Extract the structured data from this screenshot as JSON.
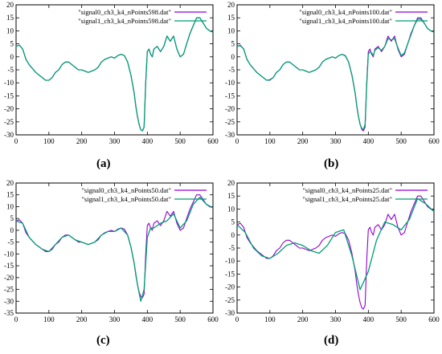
{
  "figure": {
    "panel_labels": [
      "(a)",
      "(b)",
      "(c)",
      "(d)"
    ]
  },
  "colors": {
    "signal0": "#9400d3",
    "signal1": "#009e73",
    "axis": "#000000"
  },
  "chart_data": [
    {
      "type": "line",
      "panel": "(a)",
      "xlim": [
        0,
        600
      ],
      "ylim": [
        -30,
        20
      ],
      "xticks": [
        0,
        100,
        200,
        300,
        400,
        500,
        600
      ],
      "yticks": [
        -30,
        -25,
        -20,
        -15,
        -10,
        -5,
        0,
        5,
        10,
        15,
        20
      ],
      "legend_position": "top-right",
      "grid": false,
      "series": [
        {
          "name": "\"signal0_ch3_k4_nPoints598.dat\"",
          "x": [
            0,
            10,
            20,
            30,
            40,
            50,
            60,
            70,
            80,
            90,
            100,
            110,
            120,
            130,
            140,
            150,
            160,
            170,
            180,
            190,
            200,
            210,
            220,
            230,
            240,
            250,
            260,
            270,
            280,
            290,
            300,
            310,
            320,
            330,
            340,
            350,
            360,
            365,
            370,
            375,
            380,
            385,
            390,
            395,
            400,
            405,
            410,
            415,
            420,
            430,
            440,
            450,
            460,
            470,
            480,
            490,
            500,
            510,
            520,
            530,
            540,
            550,
            560,
            570,
            580,
            590,
            600
          ],
          "y": [
            4,
            4.5,
            3,
            -1,
            -3,
            -4.5,
            -6,
            -7,
            -8,
            -9,
            -9,
            -8,
            -6,
            -5,
            -3,
            -2,
            -2,
            -3,
            -4,
            -5,
            -5,
            -5.5,
            -6,
            -5.5,
            -5,
            -4,
            -2,
            -1,
            -0.5,
            0,
            -0.5,
            0.5,
            1,
            0.5,
            -2,
            -7,
            -14,
            -19,
            -23,
            -26,
            -28,
            -28.5,
            -27,
            -10,
            2,
            3,
            1,
            0,
            3,
            4,
            2,
            4,
            8,
            6,
            8,
            3,
            0,
            1,
            5,
            9,
            12,
            15,
            15,
            13,
            11,
            10,
            9.5
          ]
        },
        {
          "name": "\"signal1_ch3_k4_nPoints598.dat\"",
          "x": [
            0,
            10,
            20,
            30,
            40,
            50,
            60,
            70,
            80,
            90,
            100,
            110,
            120,
            130,
            140,
            150,
            160,
            170,
            180,
            190,
            200,
            210,
            220,
            230,
            240,
            250,
            260,
            270,
            280,
            290,
            300,
            310,
            320,
            330,
            340,
            350,
            360,
            365,
            370,
            375,
            380,
            385,
            390,
            395,
            400,
            405,
            410,
            415,
            420,
            430,
            440,
            450,
            460,
            470,
            480,
            490,
            500,
            510,
            520,
            530,
            540,
            550,
            560,
            570,
            580,
            590,
            600
          ],
          "y": [
            4,
            4.5,
            3,
            -1,
            -3,
            -4.5,
            -6,
            -7,
            -8,
            -9,
            -9,
            -8,
            -6,
            -5,
            -3,
            -2,
            -2,
            -3,
            -4,
            -5,
            -5,
            -5.5,
            -6,
            -5.5,
            -5,
            -4,
            -2,
            -1,
            -0.5,
            0,
            -0.5,
            0.5,
            1,
            0.5,
            -2,
            -7,
            -14,
            -19,
            -23,
            -26,
            -28,
            -28.5,
            -27,
            -10,
            2,
            3,
            1,
            0,
            3,
            4,
            2,
            4,
            8,
            6,
            8,
            3,
            0,
            1,
            5,
            9,
            12,
            15,
            15,
            13,
            11,
            10,
            9.5
          ]
        }
      ]
    },
    {
      "type": "line",
      "panel": "(b)",
      "xlim": [
        0,
        600
      ],
      "ylim": [
        -30,
        20
      ],
      "xticks": [
        0,
        100,
        200,
        300,
        400,
        500,
        600
      ],
      "yticks": [
        -30,
        -25,
        -20,
        -15,
        -10,
        -5,
        0,
        5,
        10,
        15,
        20
      ],
      "legend_position": "top-right",
      "grid": false,
      "series": [
        {
          "name": "\"signal0_ch3_k4_nPoints100.dat\"",
          "x": [
            0,
            10,
            20,
            30,
            40,
            50,
            60,
            70,
            80,
            90,
            100,
            110,
            120,
            130,
            140,
            150,
            160,
            170,
            180,
            190,
            200,
            210,
            220,
            230,
            240,
            250,
            260,
            270,
            280,
            290,
            300,
            310,
            320,
            330,
            340,
            350,
            360,
            365,
            370,
            375,
            380,
            385,
            390,
            395,
            400,
            405,
            410,
            415,
            420,
            430,
            440,
            450,
            460,
            470,
            480,
            490,
            500,
            510,
            520,
            530,
            540,
            550,
            560,
            570,
            580,
            590,
            600
          ],
          "y": [
            4,
            4.5,
            3,
            -1,
            -3,
            -4.5,
            -6,
            -7,
            -8,
            -9,
            -9,
            -8,
            -6,
            -5,
            -3,
            -2,
            -2,
            -3,
            -4,
            -5,
            -5,
            -5.5,
            -6,
            -5.5,
            -5,
            -4,
            -2,
            -1,
            -0.5,
            0,
            -0.5,
            0.5,
            1,
            0.5,
            -2,
            -7,
            -14,
            -19,
            -23,
            -26,
            -28,
            -28.5,
            -27,
            -10,
            2,
            3,
            1,
            0,
            3,
            4,
            2,
            4,
            8,
            6,
            8,
            3,
            0,
            1,
            5,
            9,
            12,
            15,
            15,
            13,
            11,
            10,
            9.5
          ]
        },
        {
          "name": "\"signal1_ch3_k4_nPoints100.dat\"",
          "x": [
            0,
            10,
            20,
            30,
            40,
            50,
            60,
            70,
            80,
            90,
            100,
            110,
            120,
            130,
            140,
            150,
            160,
            170,
            180,
            190,
            200,
            210,
            220,
            230,
            240,
            250,
            260,
            270,
            280,
            290,
            300,
            310,
            320,
            330,
            340,
            350,
            360,
            365,
            370,
            375,
            380,
            385,
            390,
            395,
            400,
            405,
            410,
            415,
            420,
            430,
            440,
            450,
            460,
            470,
            480,
            490,
            500,
            510,
            520,
            530,
            540,
            550,
            560,
            570,
            580,
            590,
            600
          ],
          "y": [
            4,
            4.3,
            3,
            -1,
            -3,
            -4.5,
            -6,
            -7,
            -8,
            -9,
            -8.8,
            -8,
            -6,
            -5,
            -3,
            -2,
            -2,
            -3,
            -4,
            -5,
            -5,
            -5.5,
            -6,
            -5.5,
            -5,
            -4,
            -2,
            -1,
            -0.5,
            0,
            -0.5,
            0.5,
            1,
            0.3,
            -2,
            -7,
            -14,
            -19,
            -23,
            -26,
            -27.5,
            -28,
            -26,
            -11,
            1,
            2,
            1.5,
            0.5,
            2.5,
            3.5,
            2.5,
            4,
            7,
            6.5,
            7,
            3.5,
            0.5,
            1.5,
            5,
            8.5,
            12,
            14.5,
            14.5,
            13,
            11,
            10,
            9.5
          ]
        }
      ]
    },
    {
      "type": "line",
      "panel": "(c)",
      "xlim": [
        0,
        600
      ],
      "ylim": [
        -35,
        20
      ],
      "xticks": [
        0,
        100,
        200,
        300,
        400,
        500,
        600
      ],
      "yticks": [
        -35,
        -30,
        -25,
        -20,
        -15,
        -10,
        -5,
        0,
        5,
        10,
        15,
        20
      ],
      "legend_position": "top-right",
      "grid": false,
      "series": [
        {
          "name": "\"signal0_ch3_k4_nPoints50.dat\"",
          "x": [
            0,
            10,
            20,
            30,
            40,
            50,
            60,
            70,
            80,
            90,
            100,
            110,
            120,
            130,
            140,
            150,
            160,
            170,
            180,
            190,
            200,
            210,
            220,
            230,
            240,
            250,
            260,
            270,
            280,
            290,
            300,
            310,
            320,
            330,
            340,
            350,
            360,
            365,
            370,
            375,
            380,
            385,
            390,
            395,
            400,
            405,
            410,
            415,
            420,
            430,
            440,
            450,
            460,
            470,
            480,
            490,
            500,
            510,
            520,
            530,
            540,
            550,
            560,
            570,
            580,
            590,
            600
          ],
          "y": [
            4,
            4.5,
            3,
            -1,
            -3,
            -4.5,
            -6,
            -7,
            -8,
            -9,
            -9,
            -8,
            -6,
            -5,
            -3,
            -2,
            -2,
            -3,
            -4,
            -5,
            -5,
            -5.5,
            -6,
            -5.5,
            -5,
            -4,
            -2,
            -1,
            -0.5,
            0,
            -0.5,
            0.5,
            1,
            0.5,
            -2,
            -7,
            -14,
            -19,
            -23,
            -26,
            -28,
            -28.5,
            -27,
            -10,
            2,
            3,
            1,
            0,
            3,
            4,
            2,
            4,
            8,
            6,
            8,
            3,
            0,
            1,
            5,
            9,
            12,
            15,
            15,
            13,
            11,
            10,
            9.5
          ]
        },
        {
          "name": "\"signal1_ch3_k4_nPoints50.dat\"",
          "x": [
            0,
            20,
            40,
            60,
            80,
            100,
            120,
            140,
            160,
            180,
            200,
            220,
            240,
            260,
            280,
            300,
            320,
            340,
            350,
            360,
            370,
            380,
            390,
            400,
            410,
            420,
            440,
            460,
            480,
            500,
            520,
            540,
            560,
            580,
            600
          ],
          "y": [
            4,
            3,
            -3,
            -6,
            -8,
            -9,
            -6,
            -3,
            -2,
            -4,
            -5,
            -6,
            -5,
            -2,
            -0.5,
            -0.5,
            1,
            -2,
            -7,
            -14,
            -23,
            -30,
            -25,
            -3,
            1,
            1,
            3,
            4,
            7,
            1,
            4,
            11,
            14,
            11,
            9.5
          ]
        }
      ]
    },
    {
      "type": "line",
      "panel": "(d)",
      "xlim": [
        0,
        600
      ],
      "ylim": [
        -30,
        20
      ],
      "xticks": [
        0,
        100,
        200,
        300,
        400,
        500,
        600
      ],
      "yticks": [
        -30,
        -25,
        -20,
        -15,
        -10,
        -5,
        0,
        5,
        10,
        15,
        20
      ],
      "legend_position": "top-right",
      "grid": false,
      "series": [
        {
          "name": "\"signal0_ch3_k4_nPoints25.dat\"",
          "x": [
            0,
            10,
            20,
            30,
            40,
            50,
            60,
            70,
            80,
            90,
            100,
            110,
            120,
            130,
            140,
            150,
            160,
            170,
            180,
            190,
            200,
            210,
            220,
            230,
            240,
            250,
            260,
            270,
            280,
            290,
            300,
            310,
            320,
            330,
            340,
            350,
            360,
            365,
            370,
            375,
            380,
            385,
            390,
            395,
            400,
            405,
            410,
            415,
            420,
            430,
            440,
            450,
            460,
            470,
            480,
            490,
            500,
            510,
            520,
            530,
            540,
            550,
            560,
            570,
            580,
            590,
            600
          ],
          "y": [
            4,
            4.5,
            3,
            -1,
            -3,
            -4.5,
            -6,
            -7,
            -8,
            -9,
            -9,
            -8,
            -6,
            -5,
            -3,
            -2,
            -2,
            -3,
            -4,
            -5,
            -5,
            -5.5,
            -6,
            -5.5,
            -5,
            -4,
            -2,
            -1,
            -0.5,
            0,
            -0.5,
            0.5,
            1,
            0.5,
            -2,
            -7,
            -14,
            -19,
            -23,
            -26,
            -28,
            -28.5,
            -27,
            -10,
            2,
            3,
            1,
            0,
            3,
            4,
            2,
            4,
            8,
            6,
            8,
            3,
            0,
            1,
            5,
            9,
            12,
            15,
            15,
            13,
            11,
            10,
            9.5
          ]
        },
        {
          "name": "\"signal1_ch3_k4_nPoints25.dat\"",
          "x": [
            0,
            25,
            50,
            75,
            100,
            125,
            150,
            175,
            200,
            225,
            250,
            275,
            300,
            325,
            350,
            375,
            400,
            425,
            450,
            475,
            500,
            525,
            550,
            575,
            600
          ],
          "y": [
            4,
            1,
            -5,
            -8,
            -9,
            -7,
            -4,
            -3,
            -4,
            -6,
            -7,
            -4,
            1,
            2,
            -8,
            -21,
            -14,
            -2,
            5,
            4,
            2,
            6,
            14,
            12,
            9
          ]
        }
      ]
    }
  ]
}
